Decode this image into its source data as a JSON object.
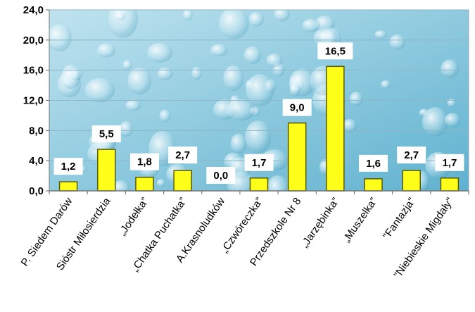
{
  "chart_data": {
    "type": "bar",
    "categories": [
      "P. Siedem Darów",
      "Sióstr Miłosierdzia",
      "„Jodełka”",
      "„Chatka Puchatka”",
      "A.Krasnoludków",
      "„Czwóreczka”",
      "Przedszkole Nr 8",
      "„Jarzębinka”",
      "„Muszelka”",
      "\"Fantazja\"",
      "\"Niebieskie Migdały\""
    ],
    "values": [
      1.2,
      5.5,
      1.8,
      2.7,
      0.0,
      1.7,
      9.0,
      16.5,
      1.6,
      2.7,
      1.7
    ],
    "value_labels": [
      "1,2",
      "5,5",
      "1,8",
      "2,7",
      "0,0",
      "1,7",
      "9,0",
      "16,5",
      "1,6",
      "2,7",
      "1,7"
    ],
    "y_ticks": [
      "0,0",
      "4,0",
      "8,0",
      "12,0",
      "16,0",
      "20,0",
      "24,0"
    ],
    "ylim": [
      0,
      24
    ],
    "y_tick_step": 4,
    "grid": true,
    "title": "",
    "xlabel": "",
    "ylabel": "",
    "colors": {
      "bar_fill": "#ffff1a",
      "bar_stroke": "#5a5a00",
      "grid": "#8fb6c8",
      "plot_bg_top": "#bfe3ef",
      "plot_bg_bottom": "#5fb2cf"
    }
  }
}
